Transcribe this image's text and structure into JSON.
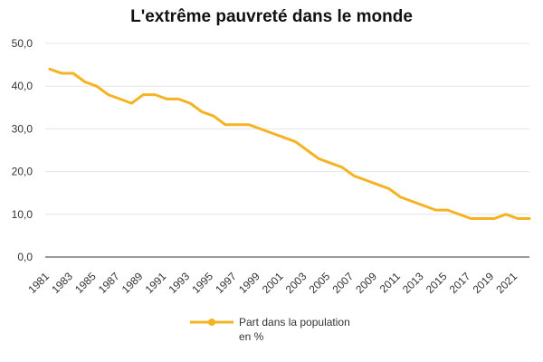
{
  "chart_data": {
    "type": "line",
    "title": "L'extrême pauvreté dans le monde",
    "xlabel": "",
    "ylabel": "",
    "ylim": [
      0,
      50
    ],
    "y_ticks": [
      "0,0",
      "10,0",
      "20,0",
      "30,0",
      "40,0",
      "50,0"
    ],
    "x_tick_labels": [
      "1981",
      "1983",
      "1985",
      "1987",
      "1989",
      "1991",
      "1993",
      "1995",
      "1997",
      "1999",
      "2001",
      "2003",
      "2005",
      "2007",
      "2009",
      "2011",
      "2013",
      "2015",
      "2017",
      "2019",
      "2021"
    ],
    "grid": true,
    "legend_position": "bottom",
    "colors": {
      "series": "#F5B324",
      "grid": "#e6e6e6",
      "axis": "#333333"
    },
    "x": [
      1981,
      1982,
      1983,
      1984,
      1985,
      1986,
      1987,
      1988,
      1989,
      1990,
      1991,
      1992,
      1993,
      1994,
      1995,
      1996,
      1997,
      1998,
      1999,
      2000,
      2001,
      2002,
      2003,
      2004,
      2005,
      2006,
      2007,
      2008,
      2009,
      2010,
      2011,
      2012,
      2013,
      2014,
      2015,
      2016,
      2017,
      2018,
      2019,
      2020,
      2021,
      2022
    ],
    "series": [
      {
        "name": "Part dans la population en %",
        "legend_lines": [
          "Part dans la population",
          "en %"
        ],
        "values": [
          44,
          43,
          43,
          41,
          40,
          38,
          37,
          36,
          38,
          38,
          37,
          37,
          36,
          34,
          33,
          31,
          31,
          31,
          30,
          29,
          28,
          27,
          25,
          23,
          22,
          21,
          19,
          18,
          17,
          16,
          14,
          13,
          12,
          11,
          11,
          10,
          9,
          9,
          9,
          10,
          9,
          9
        ]
      }
    ]
  }
}
